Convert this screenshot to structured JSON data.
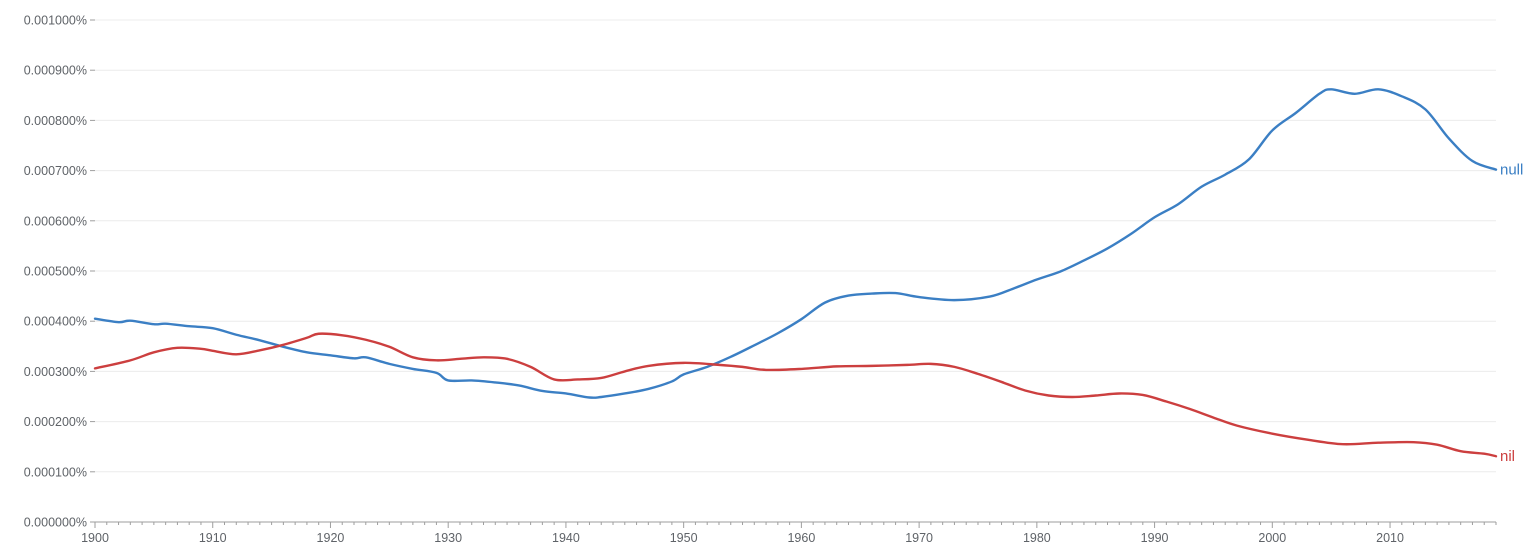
{
  "chart_data": {
    "type": "line",
    "title": "",
    "xlabel": "",
    "ylabel": "",
    "xlim": [
      1900,
      2019
    ],
    "ylim": [
      0,
      0.001
    ],
    "grid": true,
    "legend": "inline-right",
    "y_ticks": [
      {
        "value": 0,
        "label": "0.000000%"
      },
      {
        "value": 0.0001,
        "label": "0.000100%"
      },
      {
        "value": 0.0002,
        "label": "0.000200%"
      },
      {
        "value": 0.0003,
        "label": "0.000300%"
      },
      {
        "value": 0.0004,
        "label": "0.000400%"
      },
      {
        "value": 0.0005,
        "label": "0.000500%"
      },
      {
        "value": 0.0006,
        "label": "0.000600%"
      },
      {
        "value": 0.0007,
        "label": "0.000700%"
      },
      {
        "value": 0.0008,
        "label": "0.000800%"
      },
      {
        "value": 0.0009,
        "label": "0.000900%"
      },
      {
        "value": 0.001,
        "label": "0.001000%"
      }
    ],
    "x_ticks": [
      {
        "value": 1900,
        "label": "1900"
      },
      {
        "value": 1910,
        "label": "1910"
      },
      {
        "value": 1920,
        "label": "1920"
      },
      {
        "value": 1930,
        "label": "1930"
      },
      {
        "value": 1940,
        "label": "1940"
      },
      {
        "value": 1950,
        "label": "1950"
      },
      {
        "value": 1960,
        "label": "1960"
      },
      {
        "value": 1970,
        "label": "1970"
      },
      {
        "value": 1980,
        "label": "1980"
      },
      {
        "value": 1990,
        "label": "1990"
      },
      {
        "value": 2000,
        "label": "2000"
      },
      {
        "value": 2010,
        "label": "2010"
      }
    ],
    "series": [
      {
        "name": "null",
        "color": "#3b7fc4",
        "x": [
          1900,
          1902,
          1903,
          1905,
          1906,
          1908,
          1910,
          1912,
          1914,
          1916,
          1918,
          1920,
          1922,
          1923,
          1925,
          1927,
          1929,
          1930,
          1932,
          1934,
          1936,
          1938,
          1940,
          1942,
          1943,
          1945,
          1947,
          1949,
          1950,
          1952,
          1954,
          1956,
          1958,
          1960,
          1962,
          1964,
          1966,
          1968,
          1970,
          1973,
          1976,
          1978,
          1980,
          1982,
          1984,
          1986,
          1988,
          1990,
          1992,
          1994,
          1996,
          1998,
          2000,
          2002,
          2004,
          2005,
          2007,
          2009,
          2011,
          2013,
          2015,
          2017,
          2019
        ],
        "y": [
          0.000405,
          0.000398,
          0.000401,
          0.000394,
          0.000395,
          0.00039,
          0.000386,
          0.000373,
          0.000362,
          0.000349,
          0.000338,
          0.000332,
          0.000326,
          0.000328,
          0.000315,
          0.000305,
          0.000297,
          0.000282,
          0.000282,
          0.000278,
          0.000272,
          0.000261,
          0.000256,
          0.000248,
          0.000249,
          0.000256,
          0.000265,
          0.00028,
          0.000294,
          0.000309,
          0.000329,
          0.000352,
          0.000376,
          0.000404,
          0.000437,
          0.000451,
          0.000455,
          0.000456,
          0.000448,
          0.000442,
          0.000449,
          0.000465,
          0.000483,
          0.000499,
          0.000521,
          0.000545,
          0.000574,
          0.000607,
          0.000633,
          0.000668,
          0.000692,
          0.000722,
          0.00078,
          0.000815,
          0.000853,
          0.000862,
          0.000853,
          0.000862,
          0.000848,
          0.000822,
          0.000764,
          0.000719,
          0.000702
        ]
      },
      {
        "name": "nil",
        "color": "#cc3f3f",
        "x": [
          1900,
          1903,
          1905,
          1907,
          1909,
          1910,
          1912,
          1914,
          1916,
          1918,
          1919,
          1921,
          1923,
          1925,
          1927,
          1929,
          1931,
          1933,
          1935,
          1937,
          1939,
          1941,
          1943,
          1945,
          1947,
          1950,
          1953,
          1955,
          1957,
          1960,
          1963,
          1966,
          1969,
          1971,
          1973,
          1975,
          1977,
          1979,
          1981,
          1983,
          1985,
          1987,
          1989,
          1991,
          1993,
          1995,
          1997,
          2000,
          2003,
          2006,
          2009,
          2012,
          2014,
          2016,
          2018,
          2019
        ],
        "y": [
          0.000306,
          0.000322,
          0.000338,
          0.000347,
          0.000345,
          0.000341,
          0.000334,
          0.000342,
          0.000353,
          0.000367,
          0.000375,
          0.000372,
          0.000363,
          0.000349,
          0.000328,
          0.000322,
          0.000325,
          0.000328,
          0.000325,
          0.000309,
          0.000284,
          0.000284,
          0.000287,
          0.0003,
          0.000311,
          0.000317,
          0.000313,
          0.000309,
          0.000303,
          0.000305,
          0.00031,
          0.000311,
          0.000313,
          0.000315,
          0.000309,
          0.000295,
          0.000279,
          0.000262,
          0.000252,
          0.000249,
          0.000252,
          0.000256,
          0.000253,
          0.00024,
          0.000225,
          0.000208,
          0.000192,
          0.000176,
          0.000164,
          0.000155,
          0.000158,
          0.000159,
          0.000154,
          0.000141,
          0.000136,
          0.000131
        ]
      }
    ]
  }
}
